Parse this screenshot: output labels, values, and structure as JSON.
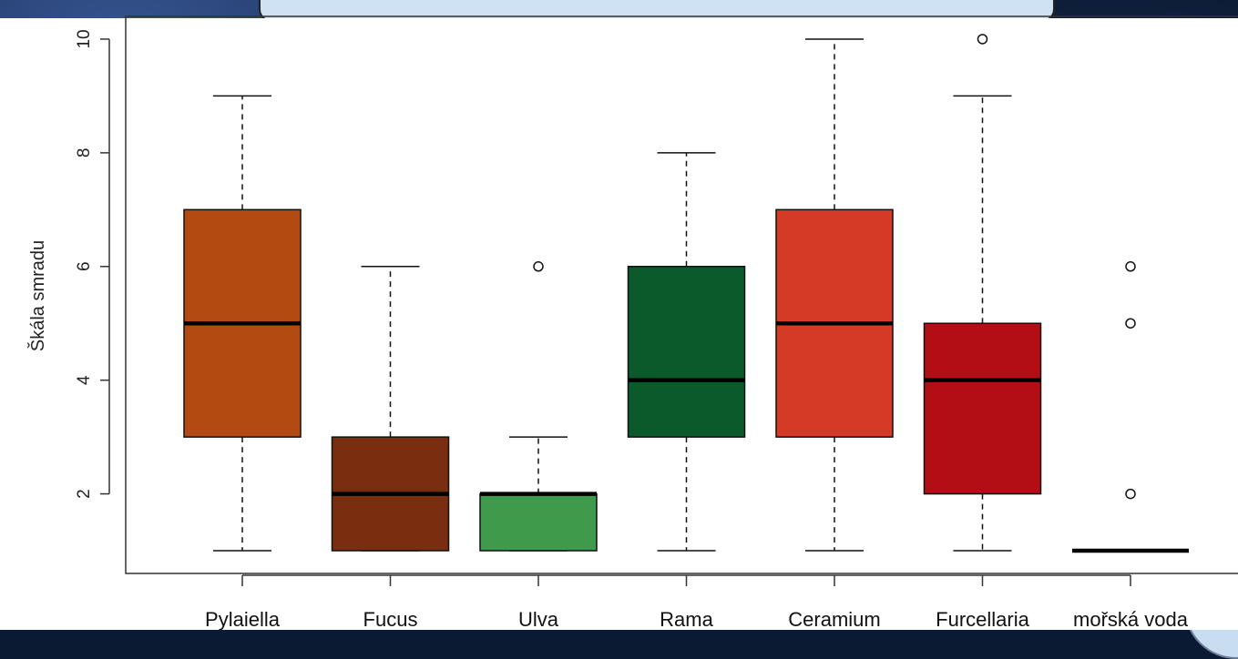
{
  "chart_data": {
    "type": "boxplot",
    "ylabel": "Škála smradu",
    "xlabel": "",
    "ylim": [
      0.6,
      10.4
    ],
    "y_ticks": [
      2,
      4,
      6,
      8,
      10
    ],
    "categories": [
      "Pylaiella",
      "Fucus",
      "Ulva",
      "Rama",
      "Ceramium",
      "Furcellaria",
      "mořská voda"
    ],
    "boxes": [
      {
        "category": "Pylaiella",
        "min": 1,
        "q1": 3,
        "median": 5,
        "q3": 7,
        "max": 9,
        "outliers": [],
        "color": "#b34a12"
      },
      {
        "category": "Fucus",
        "min": 1,
        "q1": 1,
        "median": 2,
        "q3": 3,
        "max": 6,
        "outliers": [],
        "color": "#7a2e10"
      },
      {
        "category": "Ulva",
        "min": 1,
        "q1": 1,
        "median": 2,
        "q3": 2,
        "max": 3,
        "outliers": [
          6
        ],
        "color": "#3f9a4c"
      },
      {
        "category": "Rama",
        "min": 1,
        "q1": 3,
        "median": 4,
        "q3": 6,
        "max": 8,
        "outliers": [],
        "color": "#0b5a2c"
      },
      {
        "category": "Ceramium",
        "min": 1,
        "q1": 3,
        "median": 5,
        "q3": 7,
        "max": 10,
        "outliers": [],
        "color": "#d53a26"
      },
      {
        "category": "Furcellaria",
        "min": 1,
        "q1": 2,
        "median": 4,
        "q3": 5,
        "max": 9,
        "outliers": [
          10
        ],
        "color": "#b30d16"
      },
      {
        "category": "mořská voda",
        "min": 1,
        "q1": 1,
        "median": 1,
        "q3": 1,
        "max": 1,
        "outliers": [
          2,
          5,
          6
        ],
        "color": "#000000"
      }
    ],
    "grid": false,
    "legend": "none"
  }
}
